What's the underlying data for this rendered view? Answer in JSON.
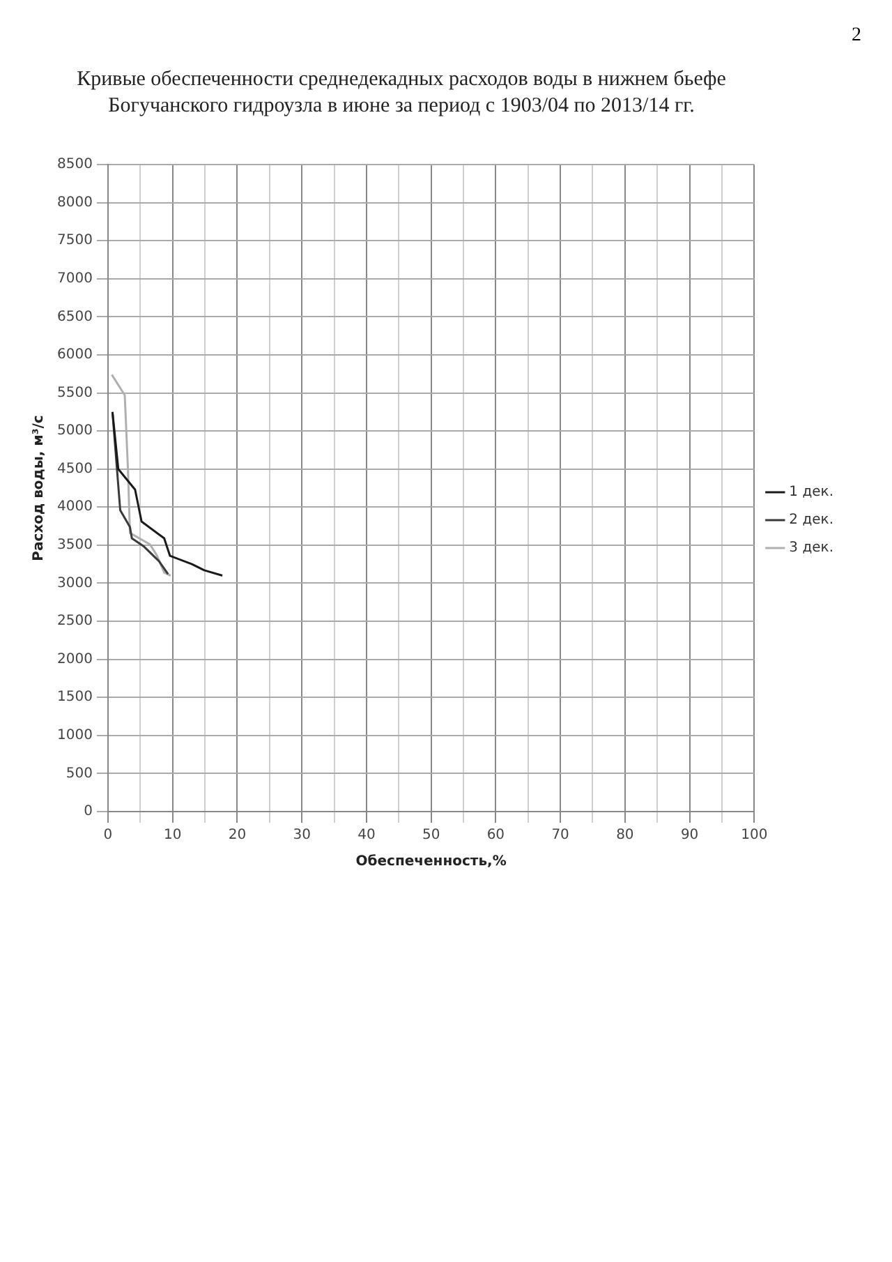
{
  "chart_data": {
    "type": "line",
    "title": "Кривые обеспеченности среднедекадных расходов воды в нижнем бьефе Богучанского гидроузла в июне за период с 1903/04 по 2013/14 гг.",
    "xlabel": "Обеспеченность,%",
    "ylabel": "Расход воды, м³/с",
    "annotations": [
      "2"
    ],
    "series": [
      {
        "name": "1 дек.",
        "color": "#1a1a1a",
        "x": [
          0.7,
          1.6,
          4.2,
          5.2,
          8.7,
          9.6,
          13,
          14.9,
          17.7
        ],
        "values": [
          5250,
          4500,
          4230,
          3810,
          3590,
          3360,
          3250,
          3170,
          3100
        ]
      },
      {
        "name": "2 дек.",
        "color": "#3a3a3a",
        "x": [
          0.7,
          1.9,
          3.4,
          3.7,
          5.6,
          7.9,
          9.3
        ],
        "values": [
          5250,
          3960,
          3740,
          3590,
          3480,
          3290,
          3120
        ]
      },
      {
        "name": "3 дек.",
        "color": "#b0b0b0",
        "x": [
          0.6,
          2.6,
          3.1,
          3.4,
          6.5,
          7.6,
          8.7,
          9.7
        ],
        "values": [
          5740,
          5470,
          4490,
          3660,
          3510,
          3360,
          3140,
          3100
        ]
      }
    ],
    "xlim": [
      0,
      100
    ],
    "xticks": [
      0,
      {
        "value": 5,
        "label": null
      },
      10,
      {
        "value": 15,
        "label": null
      },
      20,
      {
        "value": 25,
        "label": null
      },
      30,
      {
        "value": 35,
        "label": null
      },
      40,
      {
        "value": 45,
        "label": null
      },
      50,
      {
        "value": 55,
        "label": null
      },
      60,
      {
        "value": 65,
        "label": null
      },
      70,
      {
        "value": 75,
        "label": null
      },
      80,
      {
        "value": 85,
        "label": null
      },
      90,
      {
        "value": 95,
        "label": null
      },
      100
    ],
    "ylim": [
      0,
      8500
    ],
    "yticks": [
      0,
      500,
      1000,
      1500,
      2000,
      2500,
      3000,
      3500,
      4000,
      4500,
      5000,
      5500,
      6000,
      6500,
      7000,
      7500,
      8000,
      8500
    ],
    "grid": true,
    "legend": "right",
    "marker": "none",
    "line_style": "solid"
  }
}
